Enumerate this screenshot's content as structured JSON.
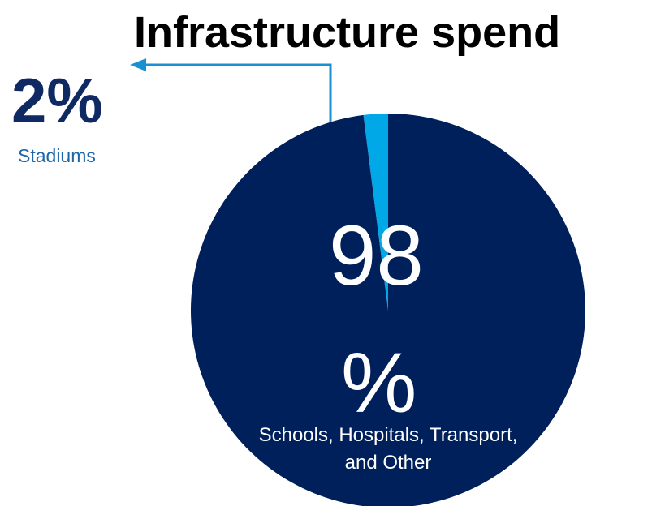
{
  "chart_data": {
    "type": "pie",
    "title": "Infrastructure spend",
    "slices": [
      {
        "label": "Stadiums",
        "value": 2,
        "display": "2%",
        "color": "#00a8e8"
      },
      {
        "label": "Schools, Hospitals, Transport, and Other",
        "value": 98,
        "display_line1": "98",
        "display_line2": "%",
        "color": "#00205b"
      }
    ],
    "callout_color": "#1a8fd1",
    "legend": "none"
  }
}
